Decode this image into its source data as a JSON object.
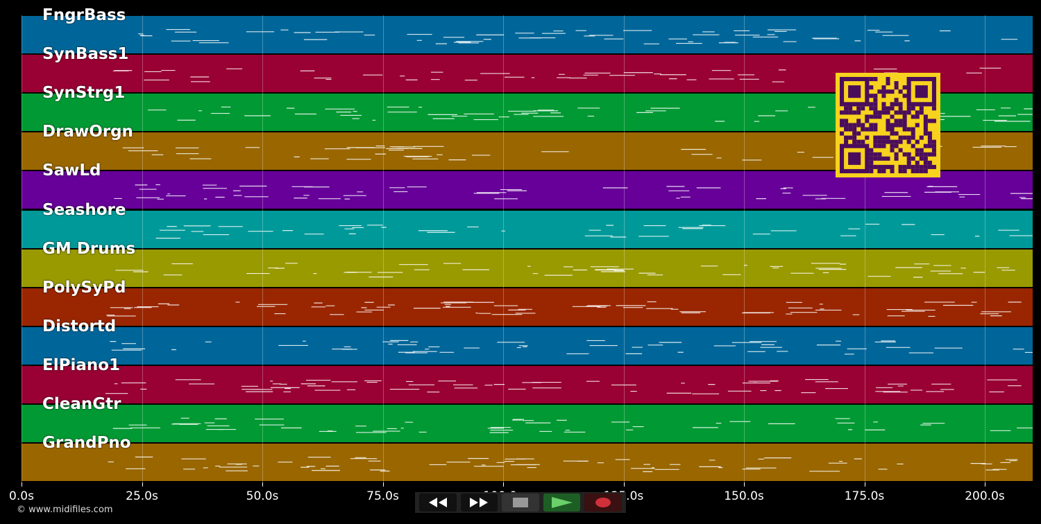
{
  "tracks": [
    {
      "name": "FngrBass",
      "color": "#006699"
    },
    {
      "name": "SynBass1",
      "color": "#990033"
    },
    {
      "name": "SynStrg1",
      "color": "#009933"
    },
    {
      "name": "DrawOrgn",
      "color": "#996600"
    },
    {
      "name": "SawLd",
      "color": "#660099"
    },
    {
      "name": "Seashore",
      "color": "#009999"
    },
    {
      "name": "GM Drums",
      "color": "#999900"
    },
    {
      "name": "PolySyPd",
      "color": "#992600"
    },
    {
      "name": "Distortd",
      "color": "#006699"
    },
    {
      "name": "ElPiano1",
      "color": "#990033"
    },
    {
      "name": "CleanGtr",
      "color": "#009933"
    },
    {
      "name": "GrandPno",
      "color": "#996600"
    }
  ],
  "timeline": {
    "max_seconds": 210,
    "ticks": [
      "0.0s",
      "25.0s",
      "50.0s",
      "75.0s",
      "100.0s",
      "125.0s",
      "150.0s",
      "175.0s",
      "200.0s"
    ],
    "tick_values": [
      0,
      25,
      50,
      75,
      100,
      125,
      150,
      175,
      200
    ]
  },
  "credit": "© www.midifiles.com",
  "transport": {
    "buttons": [
      {
        "name": "rewind-button",
        "icon": "rewind-icon"
      },
      {
        "name": "fast-forward-button",
        "icon": "fast-forward-icon"
      },
      {
        "name": "stop-button",
        "icon": "stop-icon"
      },
      {
        "name": "play-button",
        "icon": "play-icon"
      },
      {
        "name": "record-button",
        "icon": "record-icon"
      }
    ]
  },
  "qr": {
    "icon": "qr-code-icon",
    "color": "#f7d21e",
    "dark": "#4a0d5c"
  }
}
